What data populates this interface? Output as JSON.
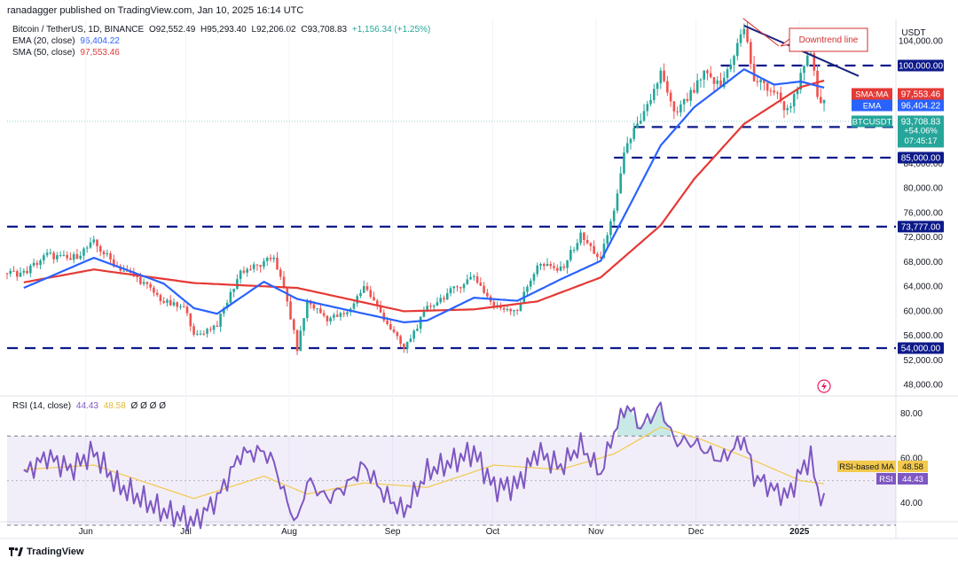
{
  "header": {
    "publisher_line": "ranadagger published on TradingView.com, Jan 10, 2025 16:14 UTC"
  },
  "legend": {
    "symbol": "Bitcoin / TetherUS, 1D, BINANCE",
    "ohlc": {
      "open": "O92,552.49",
      "high": "H95,293.40",
      "low": "L92,206.02",
      "close": "C93,708.83",
      "change": "+1,156.34 (+1.25%)"
    },
    "ema_label": "EMA (20, close)",
    "ema_value": "96,404.22",
    "sma_label": "SMA (50, close)",
    "sma_value": "97,553.46"
  },
  "rsi_legend": {
    "label": "RSI (14, close)",
    "rsi_value": "44.43",
    "ma_value": "48.58",
    "extra": "Ø Ø Ø Ø"
  },
  "footer": {
    "brand": "TradingView"
  },
  "colors": {
    "ema": "#2962ff",
    "sma": "#e53935",
    "rsi": "#7e57c2",
    "rsi_ma": "#f2c94c",
    "levels": "#0d1a8a",
    "up": "#26a69a",
    "down": "#ef5350"
  },
  "chart_data": [
    {
      "type": "candlestick",
      "title": "Bitcoin / TetherUS, 1D, BINANCE",
      "currency": "USDT",
      "y_ticks": [
        48000,
        52000,
        56000,
        60000,
        64000,
        68000,
        72000,
        76000,
        80000,
        84000,
        104000
      ],
      "y_tick_labels": [
        "48,000.00",
        "52,000.00",
        "56,000.00",
        "60,000.00",
        "64,000.00",
        "68,000.00",
        "72,000.00",
        "76,000.00",
        "80,000.00",
        "84,000.00",
        "104,000.00"
      ],
      "ylim": [
        46500,
        107500
      ],
      "x_labels": [
        "Jun",
        "Jul",
        "Aug",
        "Sep",
        "Oct",
        "Nov",
        "Dec",
        "2025"
      ],
      "horizontal_levels": [
        {
          "value": 100000,
          "label": "100,000.00"
        },
        {
          "value": 90000,
          "label": "90,000.00"
        },
        {
          "value": 85000,
          "label": "85,000.00"
        },
        {
          "value": 73777,
          "label": "73,777.00"
        },
        {
          "value": 54000,
          "label": "54,000.00"
        }
      ],
      "annotation": "Downtrend line",
      "price_tags": [
        {
          "name": "SMA:MA",
          "value": "97,553.46"
        },
        {
          "name": "EMA",
          "value": "96,404.22"
        },
        {
          "name": "BTCUSDT",
          "value": "93,708.83",
          "change": "+54.06%",
          "countdown": "07:45:17"
        }
      ],
      "close_series": [
        {
          "date": "May 15",
          "close": 66200
        },
        {
          "date": "May 22",
          "close": 69200
        },
        {
          "date": "May 29",
          "close": 68400
        },
        {
          "date": "Jun 5",
          "close": 71100
        },
        {
          "date": "Jun 12",
          "close": 67300
        },
        {
          "date": "Jun 19",
          "close": 65000
        },
        {
          "date": "Jun 26",
          "close": 61500
        },
        {
          "date": "Jul 3",
          "close": 60200
        },
        {
          "date": "Jul 5",
          "close": 55800
        },
        {
          "date": "Jul 12",
          "close": 57900
        },
        {
          "date": "Jul 19",
          "close": 66500
        },
        {
          "date": "Jul 26",
          "close": 67700
        },
        {
          "date": "Jul 29",
          "close": 69000
        },
        {
          "date": "Aug 2",
          "close": 61500
        },
        {
          "date": "Aug 5",
          "close": 53900
        },
        {
          "date": "Aug 8",
          "close": 61600
        },
        {
          "date": "Aug 14",
          "close": 58800
        },
        {
          "date": "Aug 20",
          "close": 59600
        },
        {
          "date": "Aug 25",
          "close": 64200
        },
        {
          "date": "Aug 31",
          "close": 58900
        },
        {
          "date": "Sep 6",
          "close": 53800
        },
        {
          "date": "Sep 13",
          "close": 60500
        },
        {
          "date": "Sep 20",
          "close": 63200
        },
        {
          "date": "Sep 27",
          "close": 65800
        },
        {
          "date": "Oct 3",
          "close": 60700
        },
        {
          "date": "Oct 10",
          "close": 60300
        },
        {
          "date": "Oct 16",
          "close": 67600
        },
        {
          "date": "Oct 23",
          "close": 66700
        },
        {
          "date": "Oct 29",
          "close": 72300
        },
        {
          "date": "Nov 4",
          "close": 68400
        },
        {
          "date": "Nov 8",
          "close": 76500
        },
        {
          "date": "Nov 12",
          "close": 88000
        },
        {
          "date": "Nov 16",
          "close": 90500
        },
        {
          "date": "Nov 22",
          "close": 98800
        },
        {
          "date": "Nov 26",
          "close": 91900
        },
        {
          "date": "Dec 2",
          "close": 95900
        },
        {
          "date": "Dec 5",
          "close": 98500
        },
        {
          "date": "Dec 10",
          "close": 96600
        },
        {
          "date": "Dec 17",
          "close": 106100
        },
        {
          "date": "Dec 20",
          "close": 97700
        },
        {
          "date": "Dec 26",
          "close": 95800
        },
        {
          "date": "Dec 30",
          "close": 92600
        },
        {
          "date": "Jan 3",
          "close": 98100
        },
        {
          "date": "Jan 6",
          "close": 102200
        },
        {
          "date": "Jan 8",
          "close": 94700
        },
        {
          "date": "Jan 10",
          "close": 93709
        }
      ],
      "ema_20": [
        {
          "date": "May 15",
          "v": 63800
        },
        {
          "date": "Jun 5",
          "v": 68700
        },
        {
          "date": "Jun 26",
          "v": 64500
        },
        {
          "date": "Jul 5",
          "v": 60500
        },
        {
          "date": "Jul 12",
          "v": 59600
        },
        {
          "date": "Jul 26",
          "v": 64800
        },
        {
          "date": "Aug 5",
          "v": 62000
        },
        {
          "date": "Aug 20",
          "v": 60200
        },
        {
          "date": "Sep 6",
          "v": 58200
        },
        {
          "date": "Sep 13",
          "v": 58500
        },
        {
          "date": "Sep 27",
          "v": 62200
        },
        {
          "date": "Oct 10",
          "v": 61700
        },
        {
          "date": "Oct 23",
          "v": 65200
        },
        {
          "date": "Nov 4",
          "v": 68200
        },
        {
          "date": "Nov 12",
          "v": 76500
        },
        {
          "date": "Nov 22",
          "v": 87000
        },
        {
          "date": "Dec 2",
          "v": 93200
        },
        {
          "date": "Dec 10",
          "v": 96500
        },
        {
          "date": "Dec 17",
          "v": 99400
        },
        {
          "date": "Dec 26",
          "v": 96900
        },
        {
          "date": "Jan 3",
          "v": 97400
        },
        {
          "date": "Jan 10",
          "v": 96404
        }
      ],
      "sma_50": [
        {
          "date": "May 15",
          "v": 64700
        },
        {
          "date": "Jun 5",
          "v": 66800
        },
        {
          "date": "Jul 5",
          "v": 64600
        },
        {
          "date": "Aug 5",
          "v": 63800
        },
        {
          "date": "Sep 6",
          "v": 60000
        },
        {
          "date": "Sep 27",
          "v": 60300
        },
        {
          "date": "Oct 16",
          "v": 61600
        },
        {
          "date": "Nov 4",
          "v": 65500
        },
        {
          "date": "Nov 22",
          "v": 74000
        },
        {
          "date": "Dec 2",
          "v": 81500
        },
        {
          "date": "Dec 17",
          "v": 90500
        },
        {
          "date": "Jan 3",
          "v": 96500
        },
        {
          "date": "Jan 10",
          "v": 97553
        }
      ]
    },
    {
      "type": "line",
      "title": "RSI (14, close)",
      "y_ticks": [
        40,
        60,
        80
      ],
      "y_tick_labels": [
        "40.00",
        "60.00",
        "80.00"
      ],
      "ylim": [
        32,
        86
      ],
      "band": [
        30,
        70
      ],
      "mid": 50,
      "series": [
        {
          "name": "RSI",
          "points": [
            {
              "date": "May 15",
              "v": 53
            },
            {
              "date": "May 22",
              "v": 61
            },
            {
              "date": "May 29",
              "v": 55
            },
            {
              "date": "Jun 5",
              "v": 63
            },
            {
              "date": "Jun 12",
              "v": 48
            },
            {
              "date": "Jun 19",
              "v": 42
            },
            {
              "date": "Jun 26",
              "v": 36
            },
            {
              "date": "Jul 3",
              "v": 33
            },
            {
              "date": "Jul 5",
              "v": 31
            },
            {
              "date": "Jul 12",
              "v": 42
            },
            {
              "date": "Jul 19",
              "v": 62
            },
            {
              "date": "Jul 26",
              "v": 63
            },
            {
              "date": "Jul 29",
              "v": 58
            },
            {
              "date": "Aug 2",
              "v": 40
            },
            {
              "date": "Aug 5",
              "v": 31
            },
            {
              "date": "Aug 8",
              "v": 50
            },
            {
              "date": "Aug 14",
              "v": 42
            },
            {
              "date": "Aug 20",
              "v": 48
            },
            {
              "date": "Aug 25",
              "v": 57
            },
            {
              "date": "Aug 31",
              "v": 44
            },
            {
              "date": "Sep 6",
              "v": 36
            },
            {
              "date": "Sep 13",
              "v": 54
            },
            {
              "date": "Sep 20",
              "v": 58
            },
            {
              "date": "Sep 27",
              "v": 63
            },
            {
              "date": "Oct 3",
              "v": 47
            },
            {
              "date": "Oct 10",
              "v": 48
            },
            {
              "date": "Oct 16",
              "v": 63
            },
            {
              "date": "Oct 23",
              "v": 56
            },
            {
              "date": "Oct 29",
              "v": 66
            },
            {
              "date": "Nov 4",
              "v": 53
            },
            {
              "date": "Nov 8",
              "v": 72
            },
            {
              "date": "Nov 12",
              "v": 84
            },
            {
              "date": "Nov 16",
              "v": 74
            },
            {
              "date": "Nov 22",
              "v": 83
            },
            {
              "date": "Nov 26",
              "v": 68
            },
            {
              "date": "Dec 2",
              "v": 67
            },
            {
              "date": "Dec 5",
              "v": 64
            },
            {
              "date": "Dec 10",
              "v": 59
            },
            {
              "date": "Dec 17",
              "v": 69
            },
            {
              "date": "Dec 20",
              "v": 52
            },
            {
              "date": "Dec 26",
              "v": 46
            },
            {
              "date": "Dec 30",
              "v": 43
            },
            {
              "date": "Jan 3",
              "v": 54
            },
            {
              "date": "Jan 6",
              "v": 61
            },
            {
              "date": "Jan 8",
              "v": 45
            },
            {
              "date": "Jan 10",
              "v": 44.43
            }
          ]
        },
        {
          "name": "RSI-based MA",
          "points": [
            {
              "date": "May 15",
              "v": 55
            },
            {
              "date": "Jun 5",
              "v": 57
            },
            {
              "date": "Jul 5",
              "v": 42
            },
            {
              "date": "Jul 26",
              "v": 52
            },
            {
              "date": "Aug 8",
              "v": 44
            },
            {
              "date": "Aug 25",
              "v": 49
            },
            {
              "date": "Sep 13",
              "v": 47
            },
            {
              "date": "Oct 3",
              "v": 57
            },
            {
              "date": "Oct 23",
              "v": 55
            },
            {
              "date": "Nov 8",
              "v": 62
            },
            {
              "date": "Nov 22",
              "v": 74
            },
            {
              "date": "Dec 5",
              "v": 68
            },
            {
              "date": "Dec 20",
              "v": 59
            },
            {
              "date": "Jan 3",
              "v": 50
            },
            {
              "date": "Jan 10",
              "v": 48.58
            }
          ]
        }
      ]
    }
  ]
}
